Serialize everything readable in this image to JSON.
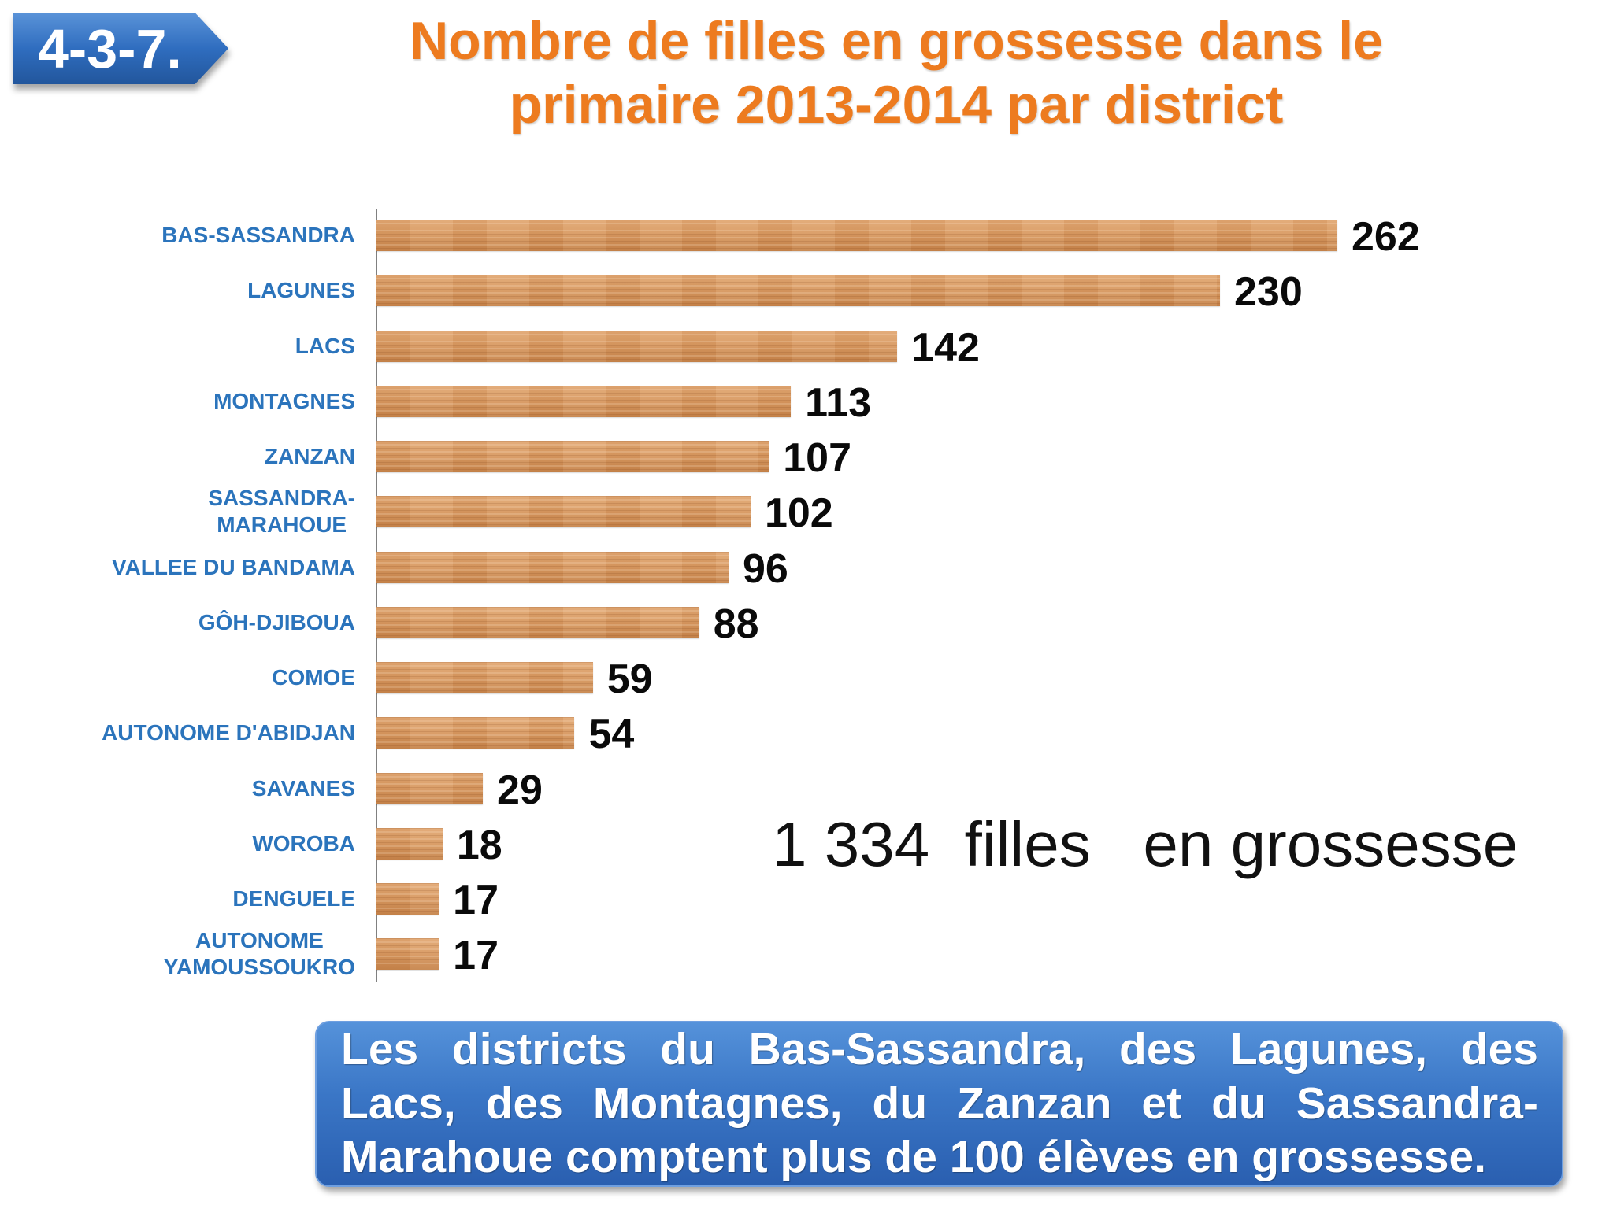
{
  "badge": {
    "label": "4-3-7."
  },
  "colors": {
    "title": "#ED7B1F",
    "category_label": "#2B74BC",
    "bar": "#D79860",
    "badge": "#2F6DBF",
    "note_box": "#3A76C6"
  },
  "chart_data": {
    "type": "bar",
    "orientation": "horizontal",
    "title_lines": [
      "Nombre de filles en grossesse dans le",
      "primaire 2013-2014 par district"
    ],
    "categories": [
      "BAS-SASSANDRA",
      "LAGUNES",
      "LACS",
      "MONTAGNES",
      "ZANZAN",
      "SASSANDRA-\nMARAHOUE",
      "VALLEE DU BANDAMA",
      "GÔH-DJIBOUA",
      "COMOE",
      "AUTONOME D'ABIDJAN",
      "SAVANES",
      "WOROBA",
      "DENGUELE",
      "AUTONOME\nYAMOUSSOUKRO"
    ],
    "values": [
      262,
      230,
      142,
      113,
      107,
      102,
      96,
      88,
      59,
      54,
      29,
      18,
      17,
      17
    ],
    "data_labels": true,
    "grid": false,
    "legend": false
  },
  "summary": "1 334  filles   en grossesse",
  "note": {
    "lines": [
      "Les districts du Bas-Sassandra, des Lagunes, des",
      "Lacs, des Montagnes, du Zanzan et du Sassandra-",
      "Marahoue comptent  plus de 100 élèves en grossesse."
    ]
  }
}
